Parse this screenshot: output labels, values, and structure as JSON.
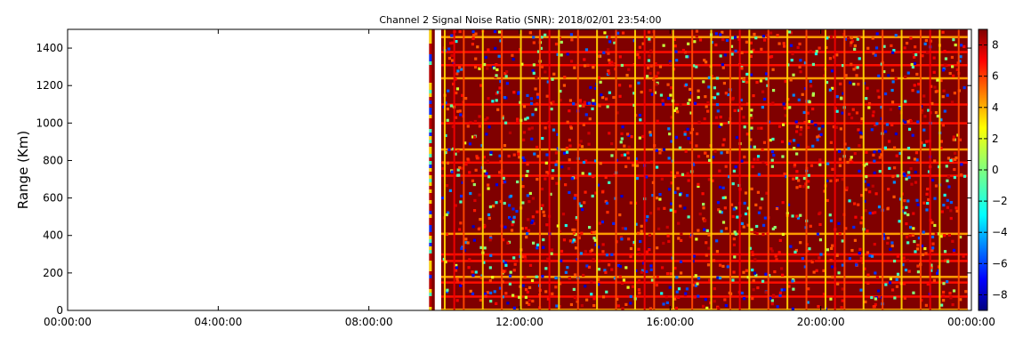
{
  "chart_data": {
    "type": "heatmap",
    "title": "Channel 2 Signal Noise Ratio (SNR): 2018/02/01 23:54:00",
    "xlabel": "",
    "ylabel": "Range (Km)",
    "x_tick_labels": [
      "00:00:00",
      "04:00:00",
      "08:00:00",
      "12:00:00",
      "16:00:00",
      "20:00:00",
      "00:00:00"
    ],
    "x_tick_hours": [
      0,
      4,
      8,
      12,
      16,
      20,
      24
    ],
    "xlim_hours": [
      0,
      24
    ],
    "y_ticks": [
      0,
      200,
      400,
      600,
      800,
      1000,
      1200,
      1400
    ],
    "ylim": [
      0,
      1500
    ],
    "colorbar": {
      "colormap": "jet",
      "range": [
        -9,
        9
      ],
      "ticks": [
        -8,
        -6,
        -4,
        -2,
        0,
        2,
        4,
        6,
        8
      ]
    },
    "data_start_hour": 9.6,
    "data_gap_hours": [
      9.75,
      9.92
    ],
    "data_end_hour": 23.9,
    "dominant_value": 9,
    "stripe_value": 3,
    "horizontal_line_ranges_km": [
      5,
      75,
      150,
      180,
      265,
      300,
      410,
      720,
      790,
      860,
      1000,
      1100,
      1240,
      1310,
      1380,
      1460
    ],
    "grid": false
  }
}
